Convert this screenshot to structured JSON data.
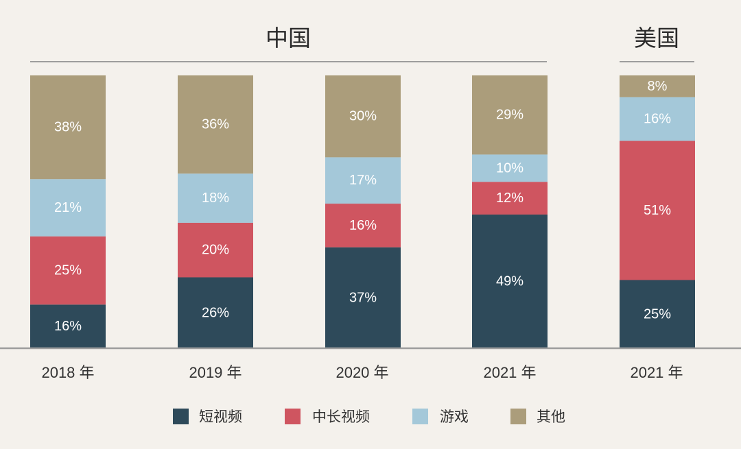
{
  "chart_data": {
    "type": "bar",
    "stacked": true,
    "unit": "%",
    "ylim": [
      0,
      100
    ],
    "legend": "bottom",
    "group_labels": [
      {
        "label": "中国",
        "categories": [
          0,
          1,
          2,
          3
        ]
      },
      {
        "label": "美国",
        "categories": [
          4
        ]
      }
    ],
    "categories": [
      "2018 年",
      "2019 年",
      "2020 年",
      "2021 年",
      "2021 年"
    ],
    "series": [
      {
        "name": "短视频",
        "color": "#2e4a5a",
        "values": [
          16,
          26,
          37,
          49,
          25
        ]
      },
      {
        "name": "中长视频",
        "color": "#cf5560",
        "values": [
          25,
          20,
          16,
          12,
          51
        ]
      },
      {
        "name": "游戏",
        "color": "#a4c8d9",
        "values": [
          21,
          18,
          17,
          10,
          16
        ]
      },
      {
        "name": "其他",
        "color": "#ab9d7b",
        "values": [
          38,
          36,
          30,
          29,
          8
        ]
      }
    ]
  }
}
